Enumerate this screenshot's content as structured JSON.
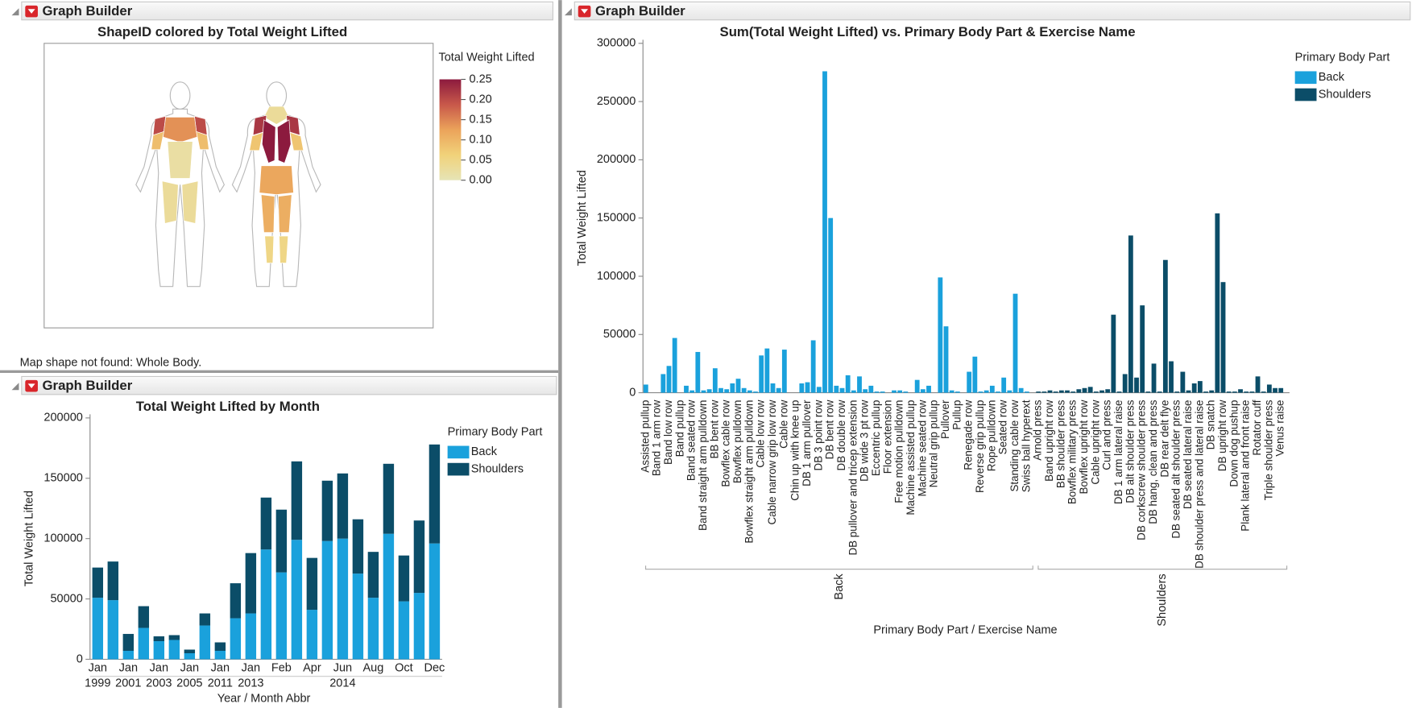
{
  "panels": [
    "Graph Builder",
    "Graph Builder",
    "Graph Builder"
  ],
  "chart_data": [
    {
      "type": "map",
      "title": "ShapeID colored by Total Weight Lifted",
      "legend_title": "Total Weight Lifted",
      "note": "Map shape not found: Whole Body.",
      "clim": [
        0,
        0.25
      ],
      "cticks": [
        {
          "value": 0,
          "label": "0.00"
        },
        0.05,
        {
          "value": 0.1,
          "label": "0.10"
        },
        0.15,
        {
          "value": 0.2,
          "label": "0.20"
        },
        0.25
      ],
      "colorscale": [
        "#e6e4b6",
        "#f1d27a",
        "#eba35a",
        "#c8584a",
        "#8c1a3e"
      ],
      "values": [
        0.2,
        0.2,
        0.14,
        0.09,
        0.09,
        0.02,
        0.03,
        0.03,
        0.03,
        0.22,
        0.22,
        0.25,
        0.25,
        0.08,
        0.08,
        0.12,
        0.11,
        0.11,
        0.05,
        0.05
      ]
    },
    {
      "type": "stacked_bar",
      "title": "Total Weight Lifted by Month",
      "xlabel": "Year / Month Abbr",
      "ylabel": "Total Weight Lifted",
      "legend_title": "Primary Body Part",
      "categories": [
        "Jan",
        null,
        "Jan",
        null,
        "Jan",
        null,
        "Jan",
        null,
        "Jan",
        null,
        "Jan",
        null,
        "Feb",
        null,
        "Apr",
        null,
        "Jun",
        null,
        "Aug",
        null,
        "Oct",
        null,
        "Dec"
      ],
      "years": [
        "1999",
        null,
        "2001",
        null,
        "2003",
        null,
        "2005",
        null,
        "2011",
        null,
        "2013",
        null,
        null,
        null,
        null,
        null,
        "2014",
        null,
        null,
        null,
        null,
        null,
        null
      ],
      "series": [
        {
          "name": "Back",
          "color": "#1aa1dc",
          "values": [
            51000,
            49000,
            7000,
            26000,
            15000,
            16000,
            5000,
            28000,
            7000,
            34000,
            38000,
            91000,
            72000,
            99000,
            41000,
            98000,
            100000,
            71000,
            51000,
            104000,
            48000,
            55000,
            96000
          ]
        },
        {
          "name": "Shoulders",
          "color": "#0b4d68",
          "values": [
            25000,
            32000,
            14000,
            18000,
            4000,
            4000,
            3000,
            10000,
            7000,
            29000,
            50000,
            43000,
            52000,
            65000,
            43000,
            50000,
            54000,
            45000,
            38000,
            58000,
            38000,
            60000,
            82000
          ]
        }
      ],
      "ylim": [
        0,
        200000
      ],
      "yticks": [
        0,
        50000,
        100000,
        150000,
        200000
      ]
    },
    {
      "type": "bar",
      "title": "Sum(Total Weight Lifted) vs. Primary Body Part & Exercise Name",
      "xlabel": "Primary Body Part / Exercise Name",
      "ylabel": "Total Weight Lifted",
      "legend_title": "Primary Body Part",
      "groups": [
        "Back",
        "Shoulders"
      ],
      "categories": [
        "Assisted pullup",
        null,
        "Band 1 arm row",
        null,
        "Band low row",
        null,
        "Band pullup",
        null,
        "Band seated row",
        null,
        "Band straight arm pulldown",
        null,
        "BB bent row",
        null,
        "Bowflex cable row",
        null,
        "Bowflex pulldown",
        null,
        "Bowflex straight arm pulldown",
        null,
        "Cable low row",
        null,
        "Cable narrow grip low row",
        null,
        "Cable row",
        null,
        "Chin up with knee up",
        null,
        "DB 1 arm pullover",
        null,
        "DB 3 point row",
        null,
        "DB bent row",
        null,
        "DB double row",
        null,
        "DB pullover and tricep extension",
        null,
        "DB wide 3 pt row",
        null,
        "Eccentric pullup",
        null,
        "Floor extension",
        null,
        "Free motion pulldown",
        null,
        "Machine assisted pullup",
        null,
        "Machine seated row",
        null,
        "Neutral grip pullup",
        null,
        "Pullover",
        null,
        "Pullup",
        null,
        "Renegade row",
        null,
        "Reverse grip pullup",
        null,
        "Rope pulldown",
        null,
        "Seated row",
        null,
        "Standing cable row",
        null,
        "Swiss ball hyperext",
        null,
        "Arnold press",
        null,
        "Band upright row",
        null,
        "BB shoulder press",
        null,
        "Bowflex military press",
        null,
        "Bowflex upright row",
        null,
        "Cable upright row",
        null,
        "Curl and press",
        null,
        "DB 1 arm lateral raise",
        null,
        "DB alt shoulder press",
        null,
        "DB corkscrew shoulder press",
        null,
        "DB hang, clean and press",
        null,
        "DB rear delt flye",
        null,
        "DB seated alt shoulder press",
        null,
        "DB seated lateral raise",
        null,
        "DB shoulder press and lateral raise",
        null,
        "DB snatch",
        null,
        "DB upright row",
        null,
        "Down dog pushup",
        null,
        "Plank lateral and front raise",
        null,
        "Rotator cuff",
        null,
        "Triple shoulder press",
        null,
        "Venus raise",
        null
      ],
      "series": [
        {
          "name": "Back",
          "color": "#1aa1dc",
          "values": [
            7000,
            0,
            0,
            16000,
            23000,
            47000,
            0,
            6000,
            2000,
            35000,
            2000,
            3000,
            21000,
            4000,
            3000,
            8000,
            12000,
            4000,
            2000,
            1000,
            32000,
            38000,
            8000,
            4000,
            37000,
            0,
            0,
            8000,
            9000,
            45000,
            5000,
            276000,
            150000,
            6000,
            4000,
            15000,
            2000,
            14000,
            3000,
            6000,
            1000,
            1000,
            0,
            2000,
            2000,
            1000,
            0,
            11000,
            3000,
            6000,
            0,
            99000,
            57000,
            2000,
            1000,
            0,
            18000,
            31000,
            1000,
            2000,
            6000,
            1000,
            13000,
            2000,
            85000,
            4000,
            1000,
            0,
            null,
            null,
            null,
            null,
            null,
            null,
            null,
            null,
            null,
            null,
            null,
            null,
            null,
            null,
            null,
            null,
            null,
            null,
            null,
            null,
            null,
            null,
            null,
            null,
            null,
            null,
            null,
            null,
            null,
            null,
            null,
            null,
            null,
            null,
            null,
            null,
            null,
            null,
            null,
            null,
            null,
            null,
            null,
            null
          ]
        },
        {
          "name": "Shoulders",
          "color": "#0b4d68",
          "values": [
            null,
            null,
            null,
            null,
            null,
            null,
            null,
            null,
            null,
            null,
            null,
            null,
            null,
            null,
            null,
            null,
            null,
            null,
            null,
            null,
            null,
            null,
            null,
            null,
            null,
            null,
            null,
            null,
            null,
            null,
            null,
            null,
            null,
            null,
            null,
            null,
            null,
            null,
            null,
            null,
            null,
            null,
            null,
            null,
            null,
            null,
            null,
            null,
            null,
            null,
            null,
            null,
            null,
            null,
            null,
            null,
            null,
            null,
            null,
            null,
            null,
            null,
            null,
            null,
            null,
            null,
            null,
            null,
            1000,
            1000,
            2000,
            1000,
            2000,
            2000,
            1000,
            3000,
            4000,
            5000,
            1000,
            2000,
            3000,
            67000,
            1000,
            16000,
            135000,
            13000,
            75000,
            1000,
            25000,
            1000,
            114000,
            27000,
            1000,
            18000,
            2000,
            8000,
            10000,
            1000,
            2000,
            154000,
            95000,
            1000,
            1000,
            3000,
            1000,
            1000,
            14000,
            1000,
            7000,
            4000,
            4000,
            0
          ]
        }
      ],
      "ylim": [
        0,
        300000
      ],
      "yticks": [
        0,
        50000,
        100000,
        150000,
        200000,
        250000,
        300000
      ]
    }
  ]
}
